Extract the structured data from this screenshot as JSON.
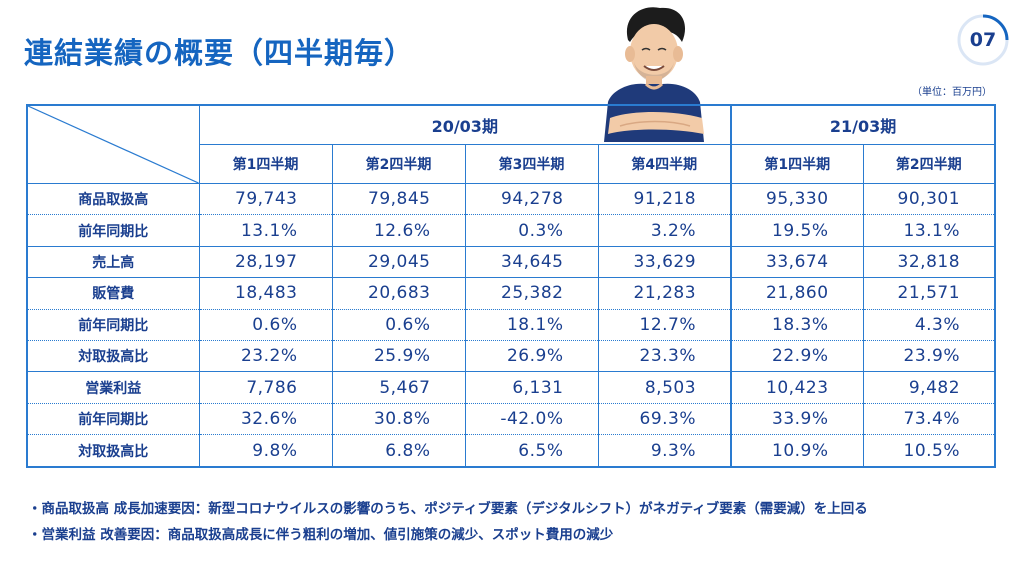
{
  "title": "連結業績の概要（四半期毎）",
  "page_number": "07",
  "unit": "（単位：百万円）",
  "table": {
    "periods": [
      {
        "label": "20/03期",
        "colspan": 4
      },
      {
        "label": "21/03期",
        "colspan": 2
      }
    ],
    "quarters": [
      "第1四半期",
      "第2四半期",
      "第3四半期",
      "第4四半期",
      "第1四半期",
      "第2四半期"
    ],
    "rows": [
      {
        "label": "商品取扱高",
        "values": [
          "79,743",
          "79,845",
          "94,278",
          "91,218",
          "95,330",
          "90,301"
        ]
      },
      {
        "label": "前年同期比",
        "values": [
          "13.1%",
          "12.6%",
          "0.3%",
          "3.2%",
          "19.5%",
          "13.1%"
        ]
      },
      {
        "label": "売上高",
        "values": [
          "28,197",
          "29,045",
          "34,645",
          "33,629",
          "33,674",
          "32,818"
        ]
      },
      {
        "label": "販管費",
        "values": [
          "18,483",
          "20,683",
          "25,382",
          "21,283",
          "21,860",
          "21,571"
        ]
      },
      {
        "label": "前年同期比",
        "values": [
          "0.6%",
          "0.6%",
          "18.1%",
          "12.7%",
          "18.3%",
          "4.3%"
        ]
      },
      {
        "label": "対取扱高比",
        "values": [
          "23.2%",
          "25.9%",
          "26.9%",
          "23.3%",
          "22.9%",
          "23.9%"
        ]
      },
      {
        "label": "営業利益",
        "values": [
          "7,786",
          "5,467",
          "6,131",
          "8,503",
          "10,423",
          "9,482"
        ]
      },
      {
        "label": "前年同期比",
        "values": [
          "32.6%",
          "30.8%",
          "-42.0%",
          "69.3%",
          "33.9%",
          "73.4%"
        ]
      },
      {
        "label": "対取扱高比",
        "values": [
          "9.8%",
          "6.8%",
          "6.5%",
          "9.3%",
          "10.9%",
          "10.5%"
        ]
      }
    ]
  },
  "notes": [
    "・商品取扱高 成長加速要因：新型コロナウイルスの影響のうち、ポジティブ要素（デジタルシフト）がネガティブ要素（需要減）を上回る",
    "・営業利益 改善要因：商品取扱高成長に伴う粗利の増加、値引施策の減少、スポット費用の減少"
  ],
  "colors": {
    "accent": "#1565c0",
    "text": "#1a3f8f",
    "border": "#2a7bd0"
  }
}
